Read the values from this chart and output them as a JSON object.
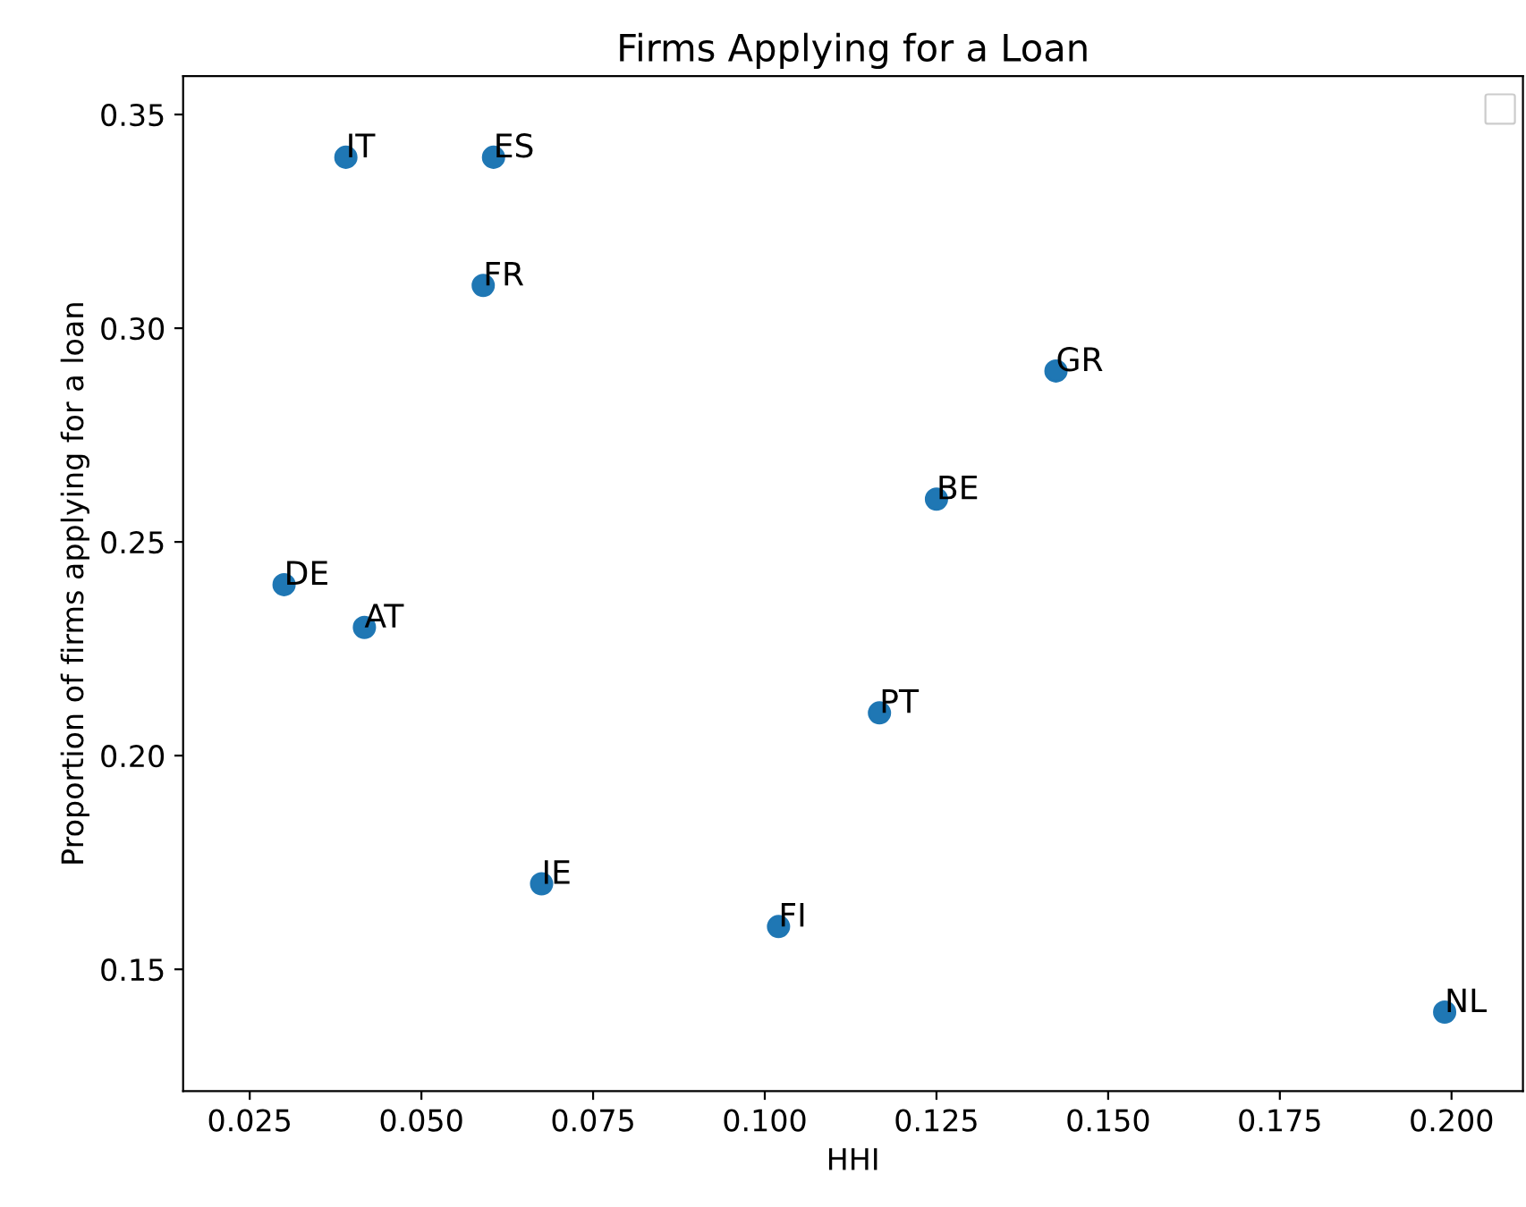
{
  "chart_data": {
    "type": "scatter",
    "title": "Firms Applying for a Loan",
    "xlabel": "HHI",
    "ylabel": "Proportion of firms applying for a loan",
    "x": [
      0.039,
      0.0605,
      0.059,
      0.1424,
      0.125,
      0.03,
      0.0417,
      0.1167,
      0.0675,
      0.102,
      0.199
    ],
    "values": [
      0.34,
      0.34,
      0.31,
      0.29,
      0.26,
      0.24,
      0.23,
      0.21,
      0.17,
      0.16,
      0.14
    ],
    "color": "#1f77b4",
    "marker": "circle",
    "annotations": [
      {
        "text": "IT",
        "x": 0.039,
        "y": 0.34
      },
      {
        "text": "ES",
        "x": 0.0605,
        "y": 0.34
      },
      {
        "text": "FR",
        "x": 0.059,
        "y": 0.31
      },
      {
        "text": "GR",
        "x": 0.1424,
        "y": 0.29
      },
      {
        "text": "BE",
        "x": 0.125,
        "y": 0.26
      },
      {
        "text": "DE",
        "x": 0.03,
        "y": 0.24
      },
      {
        "text": "AT",
        "x": 0.0417,
        "y": 0.23
      },
      {
        "text": "PT",
        "x": 0.1167,
        "y": 0.21
      },
      {
        "text": "IE",
        "x": 0.0675,
        "y": 0.17
      },
      {
        "text": "FI",
        "x": 0.102,
        "y": 0.16
      },
      {
        "text": "NL",
        "x": 0.199,
        "y": 0.14
      }
    ],
    "xlim": [
      0.0153,
      0.2104
    ],
    "ylim": [
      0.1215,
      0.359
    ],
    "xticks": [
      {
        "value": 0.025,
        "label": "0.025"
      },
      {
        "value": 0.05,
        "label": "0.050"
      },
      {
        "value": 0.075,
        "label": "0.075"
      },
      {
        "value": 0.1,
        "label": "0.100"
      },
      {
        "value": 0.125,
        "label": "0.125"
      },
      {
        "value": 0.15,
        "label": "0.150"
      },
      {
        "value": 0.175,
        "label": "0.175"
      },
      {
        "value": 0.2,
        "label": "0.200"
      }
    ],
    "yticks": [
      {
        "value": 0.15,
        "label": "0.15"
      },
      {
        "value": 0.2,
        "label": "0.20"
      },
      {
        "value": 0.25,
        "label": "0.25"
      },
      {
        "value": 0.3,
        "label": "0.30"
      },
      {
        "value": 0.35,
        "label": "0.35"
      }
    ],
    "grid": false
  }
}
